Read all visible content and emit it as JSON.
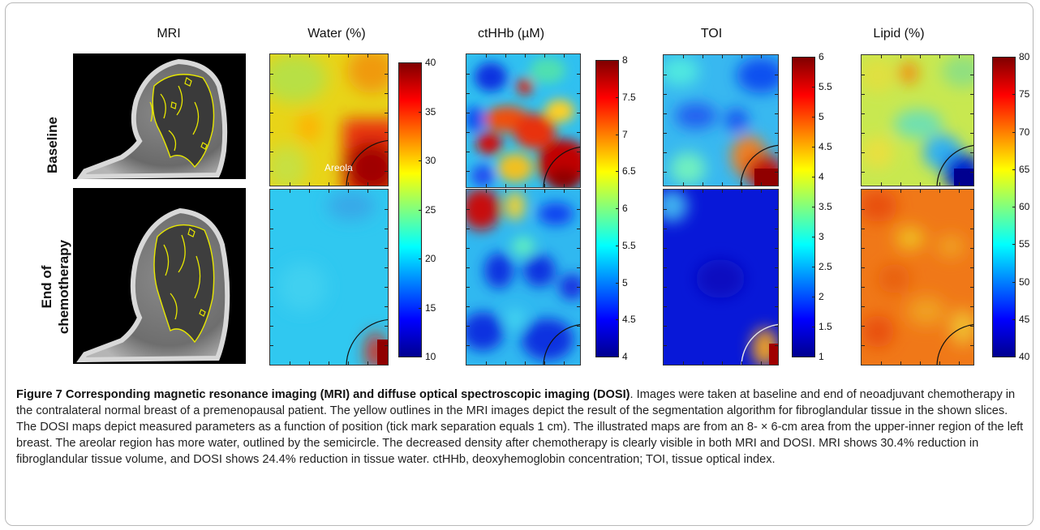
{
  "figure": {
    "column_labels": {
      "mri": "MRI",
      "water": "Water (%)",
      "cthhb": "ctHHb (µM)",
      "toi": "TOI",
      "lipid": "Lipid (%)"
    },
    "row_labels": {
      "baseline": "Baseline",
      "end_line1": "End of",
      "end_line2": "chemotherapy"
    },
    "areola_label": "Areola",
    "colorbars": {
      "water": [
        "40",
        "35",
        "30",
        "25",
        "20",
        "15",
        "10"
      ],
      "cthhb": [
        "8",
        "7.5",
        "7",
        "6.5",
        "6",
        "5.5",
        "5",
        "4.5",
        "4"
      ],
      "toi": [
        "6",
        "5.5",
        "5",
        "4.5",
        "4",
        "3.5",
        "3",
        "2.5",
        "2",
        "1.5",
        "1"
      ],
      "lipid": [
        "80",
        "75",
        "70",
        "65",
        "60",
        "55",
        "50",
        "45",
        "40"
      ]
    },
    "colors": {
      "mri_outline": "#e8e800",
      "jet_low": "#00008f",
      "jet_high": "#800000"
    }
  },
  "caption": {
    "title": "Figure 7 Corresponding magnetic resonance imaging (MRI) and diffuse optical spectroscopic imaging (DOSI)",
    "body": ". Images were taken at baseline and end of neoadjuvant chemotherapy in the contralateral normal breast of a premenopausal patient. The yellow outlines in the MRI images depict the result of the segmentation algorithm for fibroglandular tissue in the shown slices. The DOSI maps depict measured parameters as a function of position (tick mark separation equals 1 cm). The illustrated maps are from an 8- × 6-cm area from the upper-inner region of the left breast. The areolar region has more water, outlined by the semicircle. The decreased density after chemotherapy is clearly visible in both MRI and DOSI. MRI shows 30.4% reduction in fibroglandular tissue volume, and DOSI shows 24.4% reduction in tissue water. ctHHb, deoxyhemoglobin concentration; TOI, tissue optical index."
  }
}
